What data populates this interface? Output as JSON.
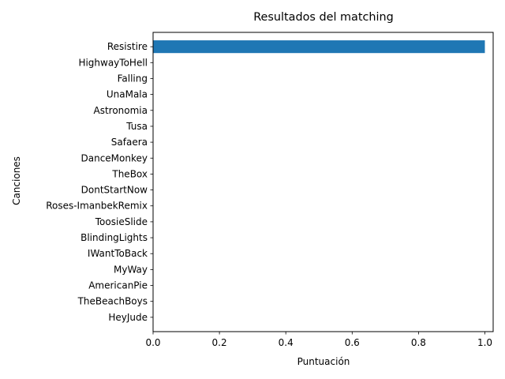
{
  "chart_data": {
    "type": "bar",
    "orientation": "horizontal",
    "title": "Resultados del matching",
    "xlabel": "Puntuación",
    "ylabel": "Canciones",
    "categories": [
      "HeyJude",
      "TheBeachBoys",
      "AmericanPie",
      "MyWay",
      "IWantToBack",
      "BlindingLights",
      "ToosieSlide",
      "Roses-ImanbekRemix",
      "DontStartNow",
      "TheBox",
      "DanceMonkey",
      "Safaera",
      "Tusa",
      "Astronomia",
      "UnaMala",
      "Falling",
      "HighwayToHell",
      "Resistire"
    ],
    "values": [
      0,
      0,
      0,
      0,
      0,
      0,
      0,
      0,
      0,
      0,
      0,
      0,
      0,
      0,
      0,
      0,
      0,
      1.0
    ],
    "xlim": [
      0,
      1.025
    ],
    "xticks": [
      "0.0",
      "0.2",
      "0.4",
      "0.6",
      "0.8",
      "1.0"
    ],
    "xtick_values": [
      0,
      0.2,
      0.4,
      0.6,
      0.8,
      1.0
    ],
    "bar_color": "#1f77b4",
    "grid": false,
    "legend": "none"
  }
}
